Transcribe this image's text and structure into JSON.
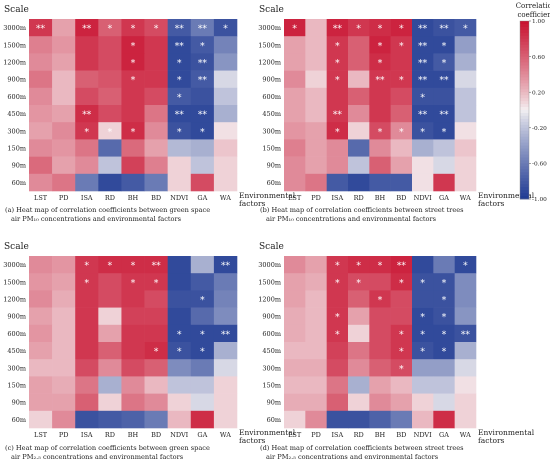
{
  "row_labels": [
    "3000m",
    "1500m",
    "1200m",
    "900m",
    "600m",
    "450m",
    "300m",
    "150m",
    "90m",
    "60m"
  ],
  "col_labels": [
    "LST",
    "PD",
    "ISA",
    "RD",
    "BH",
    "BD",
    "NDVI",
    "GA",
    "WA"
  ],
  "y_title": "Scale",
  "x_title_line1": "Environmental",
  "x_title_line2": "factors",
  "colorbar": {
    "title_line1": "Correlation",
    "title_line2": "coefficient",
    "ticks": [
      "1.00",
      "0.60",
      "0.20",
      "-0.20",
      "-0.60",
      "-1.00"
    ],
    "tick_values": [
      1.0,
      0.6,
      0.2,
      -0.2,
      -0.6,
      -1.0
    ],
    "colors": {
      "positive": "#c8102e",
      "neutral": "#f5f2f3",
      "negative": "#1f3a93"
    }
  },
  "chart_data": [
    {
      "type": "heatmap",
      "id": "a",
      "caption_line1": "(a)  Heat map of correlation coefficients between green space",
      "caption_line2": "air PM₁₀ concentrations and environmental factors",
      "rows": [
        "3000m",
        "1500m",
        "1200m",
        "900m",
        "600m",
        "450m",
        "300m",
        "150m",
        "90m",
        "60m"
      ],
      "columns": [
        "LST",
        "PD",
        "ISA",
        "RD",
        "BH",
        "BD",
        "NDVI",
        "GA",
        "WA"
      ],
      "values": [
        [
          0.8,
          0.3,
          0.9,
          0.6,
          0.8,
          0.7,
          -0.8,
          -0.6,
          -0.85
        ],
        [
          0.45,
          0.35,
          0.8,
          0.7,
          0.9,
          0.8,
          -0.9,
          -0.8,
          -0.55
        ],
        [
          0.4,
          0.3,
          0.8,
          0.7,
          0.9,
          0.8,
          -0.9,
          -0.85,
          -0.45
        ],
        [
          0.5,
          0.2,
          0.6,
          0.65,
          0.8,
          0.8,
          -0.9,
          -0.8,
          -0.1
        ],
        [
          0.4,
          0.2,
          0.7,
          0.6,
          0.8,
          0.7,
          -0.8,
          -0.85,
          -0.2
        ],
        [
          0.35,
          0.3,
          0.85,
          0.7,
          0.8,
          0.5,
          -0.9,
          -0.9,
          -0.3
        ],
        [
          0.3,
          0.4,
          0.8,
          0.1,
          0.85,
          0.4,
          -0.85,
          -0.9,
          0.05
        ],
        [
          0.4,
          0.35,
          0.5,
          -0.7,
          0.55,
          0.3,
          -0.25,
          -0.3,
          0.15
        ],
        [
          0.55,
          0.3,
          0.4,
          -0.2,
          0.75,
          0.45,
          0.1,
          -0.2,
          0.1
        ],
        [
          0.4,
          0.5,
          -0.6,
          -0.9,
          -0.8,
          -0.6,
          0.1,
          0.7,
          0.1
        ]
      ],
      "stars": [
        [
          "**",
          "",
          "**",
          "*",
          "*",
          "*",
          "**",
          "**",
          "*"
        ],
        [
          "",
          "",
          "",
          "",
          "*",
          "",
          "**",
          "*",
          ""
        ],
        [
          "",
          "",
          "",
          "",
          "*",
          "",
          "*",
          "**",
          ""
        ],
        [
          "",
          "",
          "",
          "",
          "*",
          "",
          "*",
          "**",
          ""
        ],
        [
          "",
          "",
          "",
          "",
          "",
          "",
          "*",
          "",
          ""
        ],
        [
          "",
          "",
          "**",
          "",
          "",
          "",
          "**",
          "**",
          ""
        ],
        [
          "",
          "",
          "*",
          "*",
          "*",
          "",
          "*",
          "*",
          ""
        ],
        [
          "",
          "",
          "",
          "",
          "",
          "",
          "",
          "",
          ""
        ],
        [
          "",
          "",
          "",
          "",
          "",
          "",
          "",
          "",
          ""
        ],
        [
          "",
          "",
          "",
          "",
          "",
          "",
          "",
          "",
          ""
        ]
      ]
    },
    {
      "type": "heatmap",
      "id": "b",
      "caption_line1": "(b)  Heat map of correlation coefficients between street trees",
      "caption_line2": "air PM₁₀ concentrations and environmental factors",
      "rows": [
        "3000m",
        "1500m",
        "1200m",
        "900m",
        "600m",
        "450m",
        "300m",
        "150m",
        "90m",
        "60m"
      ],
      "columns": [
        "LST",
        "PD",
        "ISA",
        "RD",
        "BH",
        "BD",
        "NDVI",
        "GA",
        "WA"
      ],
      "values": [
        [
          0.9,
          0.2,
          0.9,
          0.8,
          0.85,
          0.9,
          -0.9,
          -0.85,
          -0.8
        ],
        [
          0.3,
          0.2,
          0.8,
          0.6,
          0.9,
          0.8,
          -0.9,
          -0.9,
          -0.4
        ],
        [
          0.3,
          0.2,
          0.8,
          0.6,
          0.85,
          0.8,
          -0.9,
          -0.8,
          -0.3
        ],
        [
          0.4,
          0.1,
          0.8,
          0.2,
          0.8,
          0.8,
          -0.9,
          -0.9,
          -0.1
        ],
        [
          0.3,
          0.2,
          0.8,
          0.6,
          0.8,
          0.7,
          -0.85,
          -0.85,
          -0.2
        ],
        [
          0.3,
          0.2,
          0.8,
          0.4,
          0.8,
          0.6,
          -0.9,
          -0.9,
          -0.2
        ],
        [
          0.35,
          0.3,
          0.85,
          0.1,
          0.7,
          0.4,
          -0.85,
          -0.9,
          0.05
        ],
        [
          0.45,
          0.3,
          0.4,
          -0.7,
          0.4,
          0.2,
          -0.3,
          -0.2,
          0.15
        ],
        [
          0.4,
          0.3,
          0.4,
          -0.2,
          0.6,
          0.3,
          0.05,
          -0.1,
          0.1
        ],
        [
          0.4,
          0.5,
          -0.8,
          -0.9,
          -0.8,
          -0.8,
          0.05,
          0.8,
          0.1
        ]
      ],
      "stars": [
        [
          "*",
          "",
          "**",
          "*",
          "*",
          "*",
          "**",
          "**",
          "*"
        ],
        [
          "",
          "",
          "*",
          "",
          "*",
          "*",
          "**",
          "*",
          ""
        ],
        [
          "",
          "",
          "*",
          "",
          "*",
          "",
          "**",
          "*",
          ""
        ],
        [
          "",
          "",
          "*",
          "",
          "**",
          "*",
          "**",
          "**",
          ""
        ],
        [
          "",
          "",
          "",
          "",
          "",
          "",
          "*",
          "",
          ""
        ],
        [
          "",
          "",
          "**",
          "",
          "",
          "",
          "**",
          "**",
          ""
        ],
        [
          "",
          "",
          "*",
          "",
          "*",
          "*",
          "*",
          "*",
          ""
        ],
        [
          "",
          "",
          "",
          "",
          "",
          "",
          "",
          "",
          ""
        ],
        [
          "",
          "",
          "",
          "",
          "",
          "",
          "",
          "",
          ""
        ],
        [
          "",
          "",
          "",
          "",
          "",
          "",
          "",
          "",
          ""
        ]
      ]
    },
    {
      "type": "heatmap",
      "id": "c",
      "caption_line1": "(c)  Heat map of correlation coefficients between green space",
      "caption_line2": "air PM₂.₅ concentrations and environmental factors",
      "rows": [
        "3000m",
        "1500m",
        "1200m",
        "900m",
        "600m",
        "450m",
        "300m",
        "150m",
        "90m",
        "60m"
      ],
      "columns": [
        "LST",
        "PD",
        "ISA",
        "RD",
        "BH",
        "BD",
        "NDVI",
        "GA",
        "WA"
      ],
      "values": [
        [
          0.4,
          0.35,
          0.8,
          0.85,
          0.85,
          0.85,
          -0.9,
          -0.3,
          -0.9
        ],
        [
          0.35,
          0.3,
          0.8,
          0.7,
          0.8,
          0.8,
          -0.9,
          -0.8,
          -0.6
        ],
        [
          0.4,
          0.25,
          0.8,
          0.7,
          0.8,
          0.7,
          -0.85,
          -0.85,
          -0.55
        ],
        [
          0.3,
          0.2,
          0.8,
          0.1,
          0.75,
          0.75,
          -0.9,
          -0.7,
          -0.5
        ],
        [
          0.35,
          0.2,
          0.8,
          0.3,
          0.8,
          0.8,
          -0.9,
          -0.9,
          -0.9
        ],
        [
          0.3,
          0.2,
          0.8,
          0.6,
          0.8,
          0.85,
          -0.85,
          -0.9,
          -0.3
        ],
        [
          0.2,
          0.2,
          0.7,
          0.4,
          0.7,
          0.6,
          -0.5,
          -0.6,
          -0.1
        ],
        [
          0.3,
          0.25,
          0.5,
          -0.3,
          0.4,
          0.2,
          -0.2,
          -0.2,
          0.1
        ],
        [
          0.3,
          0.3,
          0.6,
          0.1,
          0.5,
          0.4,
          0.1,
          -0.1,
          0.1
        ],
        [
          0.1,
          0.4,
          -0.85,
          -0.8,
          -0.75,
          -0.6,
          0.2,
          0.85,
          0.1
        ]
      ],
      "stars": [
        [
          "",
          "",
          "*",
          "*",
          "*",
          "**",
          "",
          "",
          "**"
        ],
        [
          "",
          "",
          "*",
          "",
          "*",
          "*",
          "",
          "",
          ""
        ],
        [
          "",
          "",
          "",
          "",
          "",
          "",
          "",
          "*",
          ""
        ],
        [
          "",
          "",
          "",
          "",
          "",
          "",
          "",
          "",
          ""
        ],
        [
          "",
          "",
          "",
          "",
          "",
          "",
          "*",
          "*",
          "**"
        ],
        [
          "",
          "",
          "",
          "",
          "",
          "*",
          "*",
          "*",
          ""
        ],
        [
          "",
          "",
          "",
          "",
          "",
          "",
          "",
          "",
          ""
        ],
        [
          "",
          "",
          "",
          "",
          "",
          "",
          "",
          "",
          ""
        ],
        [
          "",
          "",
          "",
          "",
          "",
          "",
          "",
          "",
          ""
        ],
        [
          "",
          "",
          "",
          "",
          "",
          "",
          "",
          "",
          ""
        ]
      ]
    },
    {
      "type": "heatmap",
      "id": "d",
      "caption_line1": "(d)  Heat map of correlation coefficients between street trees",
      "caption_line2": "air PM₂.₅ concentrations and environmental factors",
      "rows": [
        "3000m",
        "1500m",
        "1200m",
        "900m",
        "600m",
        "450m",
        "300m",
        "150m",
        "90m",
        "60m"
      ],
      "columns": [
        "LST",
        "PD",
        "ISA",
        "RD",
        "BH",
        "BD",
        "NDVI",
        "GA",
        "WA"
      ],
      "values": [
        [
          0.4,
          0.3,
          0.8,
          0.85,
          0.85,
          0.9,
          -0.9,
          -0.6,
          -0.9
        ],
        [
          0.3,
          0.25,
          0.8,
          0.7,
          0.7,
          0.85,
          -0.85,
          -0.85,
          -0.5
        ],
        [
          0.3,
          0.2,
          0.8,
          0.6,
          0.8,
          0.7,
          -0.85,
          -0.85,
          -0.5
        ],
        [
          0.25,
          0.2,
          0.8,
          0.3,
          0.7,
          0.7,
          -0.9,
          -0.85,
          -0.45
        ],
        [
          0.25,
          0.2,
          0.8,
          0.1,
          0.7,
          0.8,
          -0.9,
          -0.9,
          -0.85
        ],
        [
          0.2,
          0.2,
          0.75,
          0.5,
          0.7,
          0.8,
          -0.85,
          -0.9,
          -0.3
        ],
        [
          0.25,
          0.25,
          0.7,
          0.4,
          0.6,
          0.7,
          -0.4,
          -0.4,
          -0.1
        ],
        [
          0.2,
          0.2,
          0.5,
          -0.3,
          0.3,
          0.2,
          -0.2,
          -0.2,
          0.05
        ],
        [
          0.25,
          0.25,
          0.6,
          0.1,
          0.4,
          0.3,
          0.1,
          -0.1,
          0.1
        ],
        [
          0.1,
          0.4,
          -0.85,
          -0.85,
          -0.75,
          -0.6,
          0.2,
          0.85,
          0.1
        ]
      ],
      "stars": [
        [
          "",
          "",
          "*",
          "*",
          "*",
          "**",
          "",
          "",
          "*"
        ],
        [
          "",
          "",
          "*",
          "*",
          "",
          "*",
          "*",
          "*",
          ""
        ],
        [
          "",
          "",
          "",
          "",
          "*",
          "",
          "",
          "*",
          ""
        ],
        [
          "",
          "",
          "*",
          "",
          "",
          "",
          "*",
          "*",
          ""
        ],
        [
          "",
          "",
          "*",
          "",
          "",
          "*",
          "*",
          "*",
          "**"
        ],
        [
          "",
          "",
          "",
          "",
          "",
          "*",
          "*",
          "*",
          ""
        ],
        [
          "",
          "",
          "",
          "",
          "",
          "*",
          "",
          "",
          ""
        ],
        [
          "",
          "",
          "",
          "",
          "",
          "",
          "",
          "",
          ""
        ],
        [
          "",
          "",
          "",
          "",
          "",
          "",
          "",
          "",
          ""
        ],
        [
          "",
          "",
          "",
          "",
          "",
          "",
          "",
          "",
          ""
        ]
      ]
    }
  ]
}
